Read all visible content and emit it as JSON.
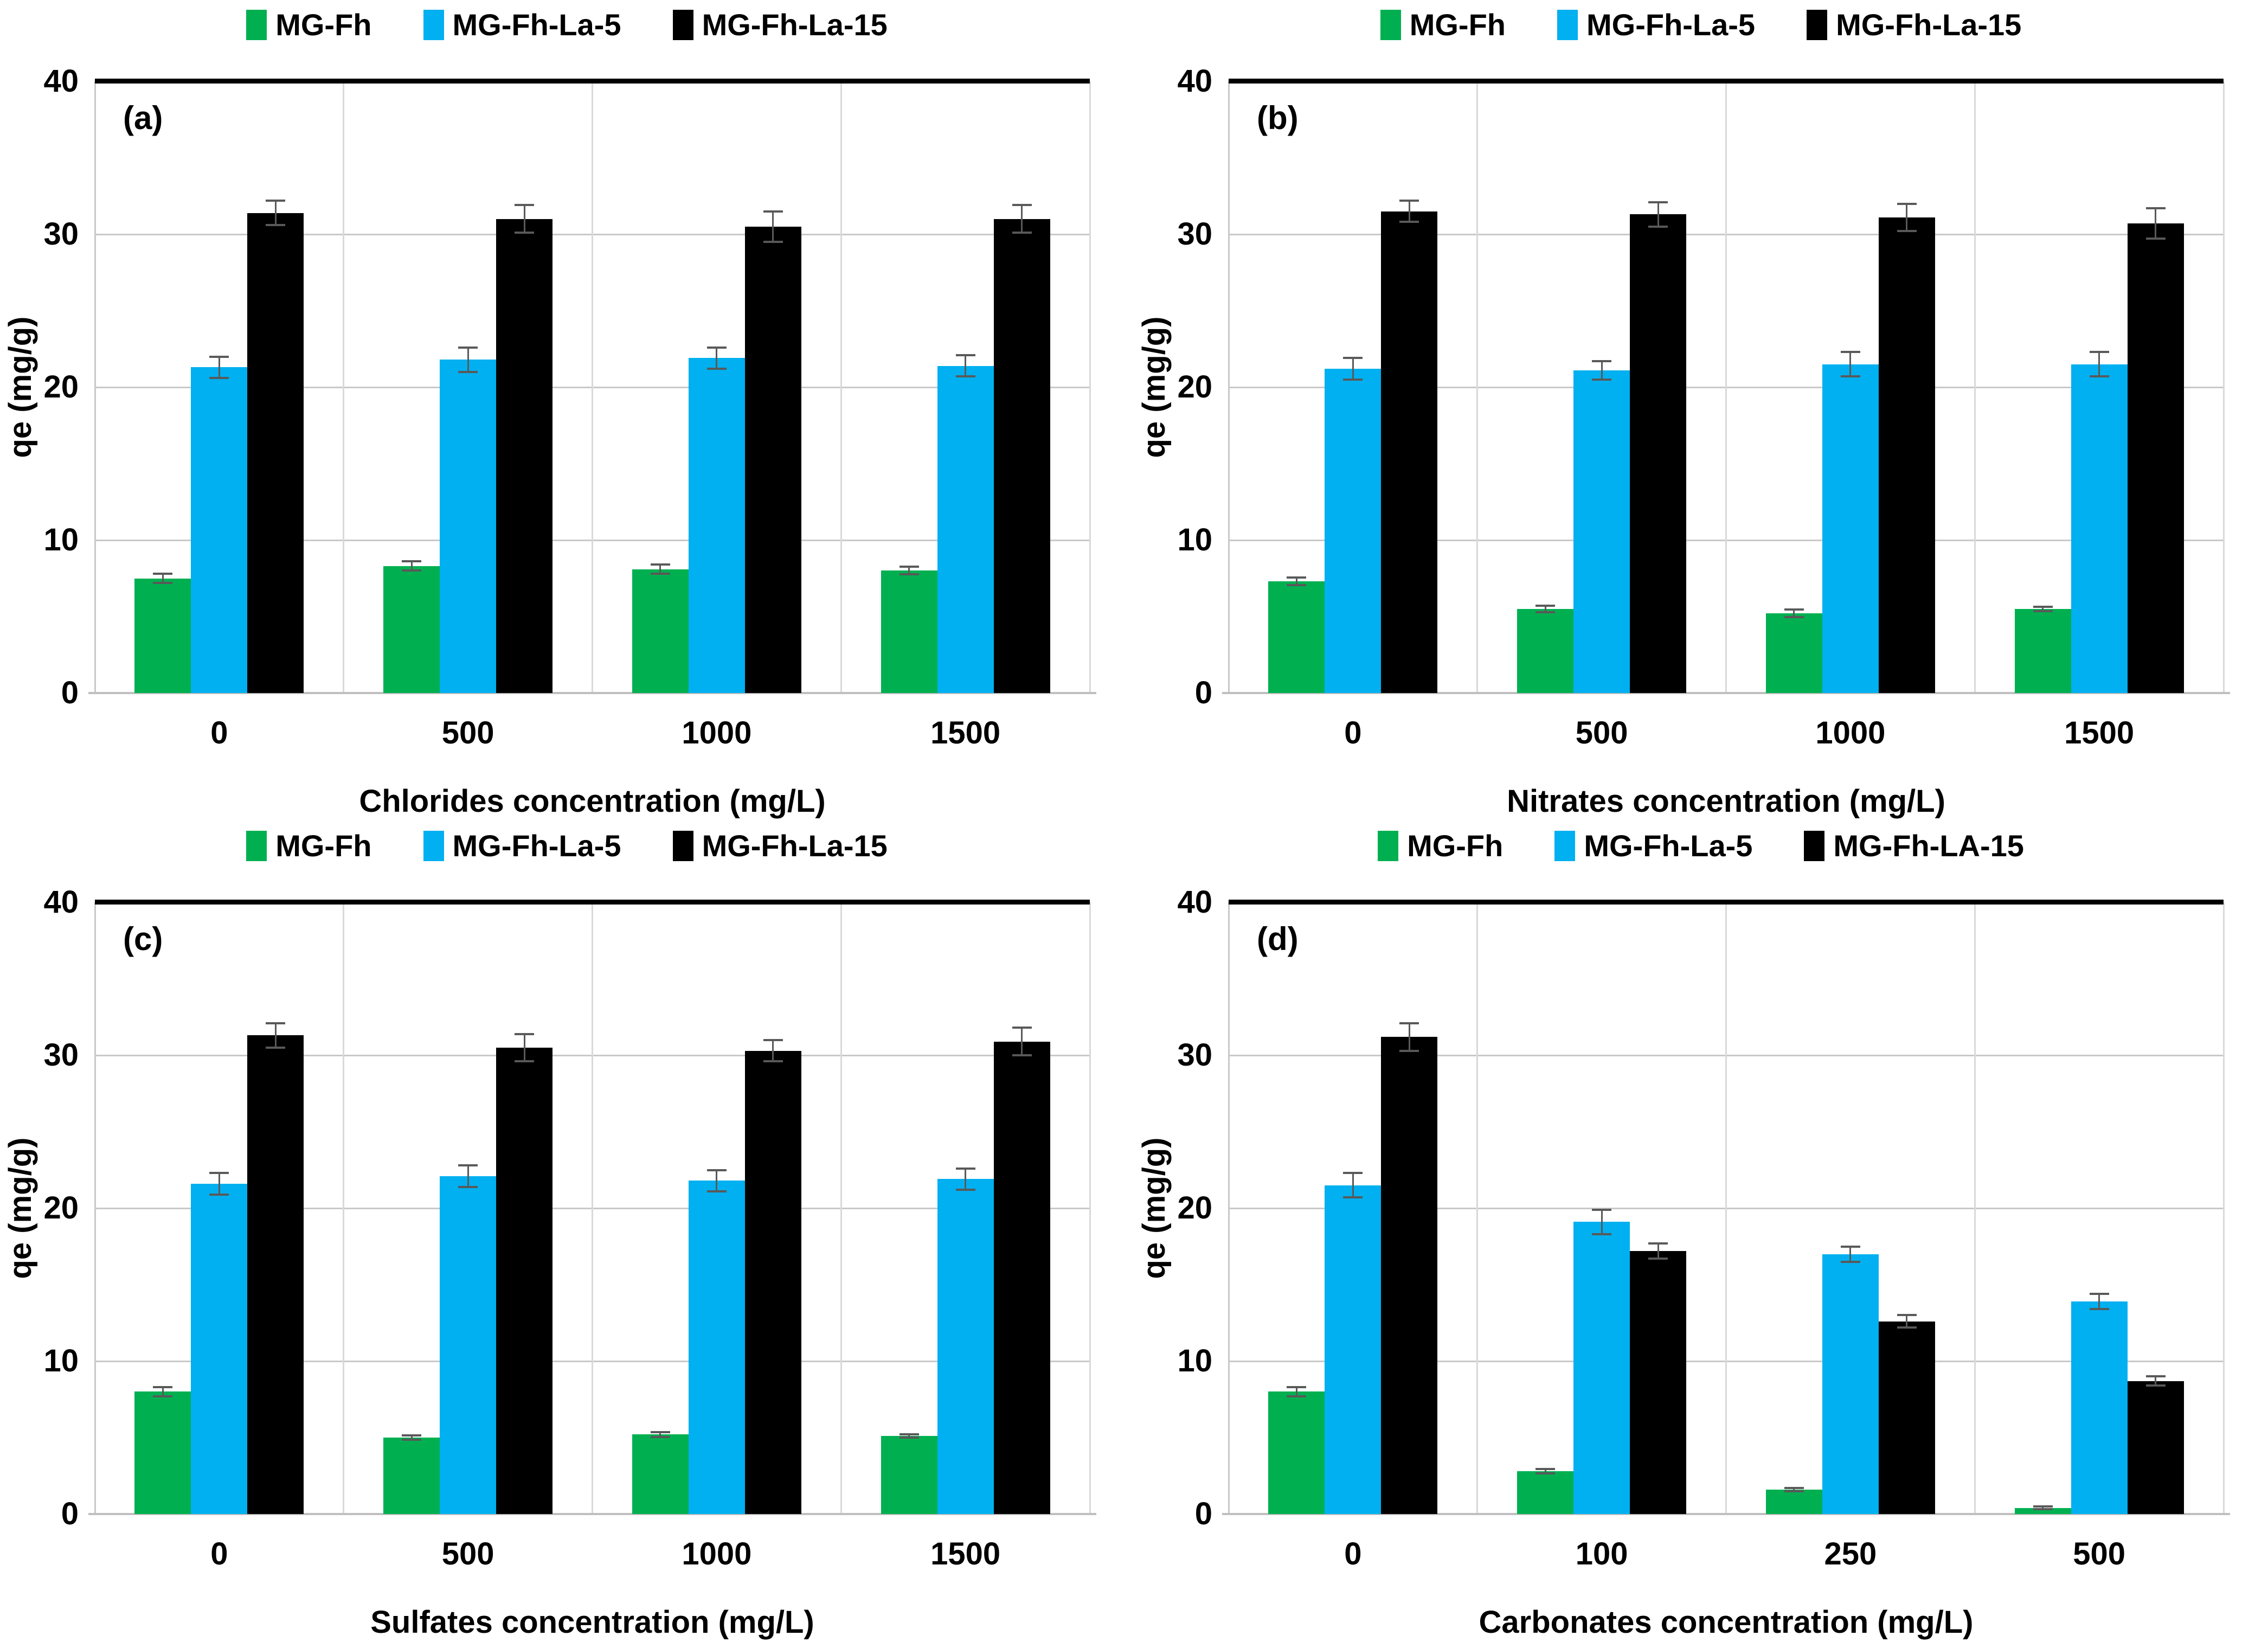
{
  "figure": {
    "y_axis_label": "qe (mg/g)",
    "y_ticks": [
      0,
      10,
      20,
      30,
      40
    ],
    "colors": {
      "green": "#00B050",
      "blue": "#00B0F0",
      "black": "#000000",
      "error_bar": "#595959",
      "h_gridline": "#C9C9C9",
      "v_gridline": "#D9D9D9",
      "baseline": "#BFBFBF",
      "top_border": "#000000"
    }
  },
  "chart_data": [
    {
      "type": "bar",
      "panel_label": "(a)",
      "title": "",
      "xlabel": "Chlorides concentration (mg/L)",
      "ylabel": "qe (mg/g)",
      "ylim": [
        0,
        40
      ],
      "grid": true,
      "legend_position": "top",
      "categories": [
        "0",
        "500",
        "1000",
        "1500"
      ],
      "series": [
        {
          "name": "MG-Fh",
          "color": "#00B050",
          "values": [
            7.5,
            8.3,
            8.1,
            8.0
          ],
          "errors": [
            0.3,
            0.3,
            0.3,
            0.25
          ]
        },
        {
          "name": "MG-Fh-La-5",
          "color": "#00B0F0",
          "values": [
            21.3,
            21.8,
            21.9,
            21.4
          ],
          "errors": [
            0.7,
            0.8,
            0.7,
            0.7
          ]
        },
        {
          "name": "MG-Fh-La-15",
          "color": "#000000",
          "values": [
            31.4,
            31.0,
            30.5,
            31.0
          ],
          "errors": [
            0.8,
            0.9,
            1.0,
            0.9
          ]
        }
      ]
    },
    {
      "type": "bar",
      "panel_label": "(b)",
      "title": "",
      "xlabel": "Nitrates concentration (mg/L)",
      "ylabel": "qe (mg/g)",
      "ylim": [
        0,
        40
      ],
      "grid": true,
      "legend_position": "top",
      "categories": [
        "0",
        "500",
        "1000",
        "1500"
      ],
      "series": [
        {
          "name": "MG-Fh",
          "color": "#00B050",
          "values": [
            7.3,
            5.5,
            5.2,
            5.5
          ],
          "errors": [
            0.25,
            0.2,
            0.25,
            0.15
          ]
        },
        {
          "name": "MG-Fh-La-5",
          "color": "#00B0F0",
          "values": [
            21.2,
            21.1,
            21.5,
            21.5
          ],
          "errors": [
            0.7,
            0.6,
            0.8,
            0.8
          ]
        },
        {
          "name": "MG-Fh-La-15",
          "color": "#000000",
          "values": [
            31.5,
            31.3,
            31.1,
            30.7
          ],
          "errors": [
            0.7,
            0.8,
            0.9,
            1.0
          ]
        }
      ]
    },
    {
      "type": "bar",
      "panel_label": "(c)",
      "title": "",
      "xlabel": "Sulfates concentration (mg/L)",
      "ylabel": "qe (mg/g)",
      "ylim": [
        0,
        40
      ],
      "grid": true,
      "legend_position": "top",
      "categories": [
        "0",
        "500",
        "1000",
        "1500"
      ],
      "series": [
        {
          "name": "MG-Fh",
          "color": "#00B050",
          "values": [
            8.0,
            5.0,
            5.2,
            5.1
          ],
          "errors": [
            0.3,
            0.15,
            0.15,
            0.1
          ]
        },
        {
          "name": "MG-Fh-La-5",
          "color": "#00B0F0",
          "values": [
            21.6,
            22.1,
            21.8,
            21.9
          ],
          "errors": [
            0.7,
            0.7,
            0.7,
            0.7
          ]
        },
        {
          "name": "MG-Fh-La-15",
          "color": "#000000",
          "values": [
            31.3,
            30.5,
            30.3,
            30.9
          ],
          "errors": [
            0.8,
            0.9,
            0.7,
            0.9
          ]
        }
      ]
    },
    {
      "type": "bar",
      "panel_label": "(d)",
      "title": "",
      "xlabel": "Carbonates concentration (mg/L)",
      "ylabel": "qe (mg/g)",
      "ylim": [
        0,
        40
      ],
      "grid": true,
      "legend_position": "top",
      "categories": [
        "0",
        "100",
        "250",
        "500"
      ],
      "series": [
        {
          "name": "MG-Fh",
          "color": "#00B050",
          "values": [
            8.0,
            2.8,
            1.6,
            0.4
          ],
          "errors": [
            0.3,
            0.15,
            0.1,
            0.08
          ]
        },
        {
          "name": "MG-Fh-La-5",
          "color": "#00B0F0",
          "values": [
            21.5,
            19.1,
            17.0,
            13.9
          ],
          "errors": [
            0.8,
            0.8,
            0.5,
            0.5
          ]
        },
        {
          "name": "MG-Fh-LA-15",
          "color": "#000000",
          "values": [
            31.2,
            17.2,
            12.6,
            8.7
          ],
          "errors": [
            0.9,
            0.5,
            0.4,
            0.3
          ]
        }
      ]
    }
  ]
}
